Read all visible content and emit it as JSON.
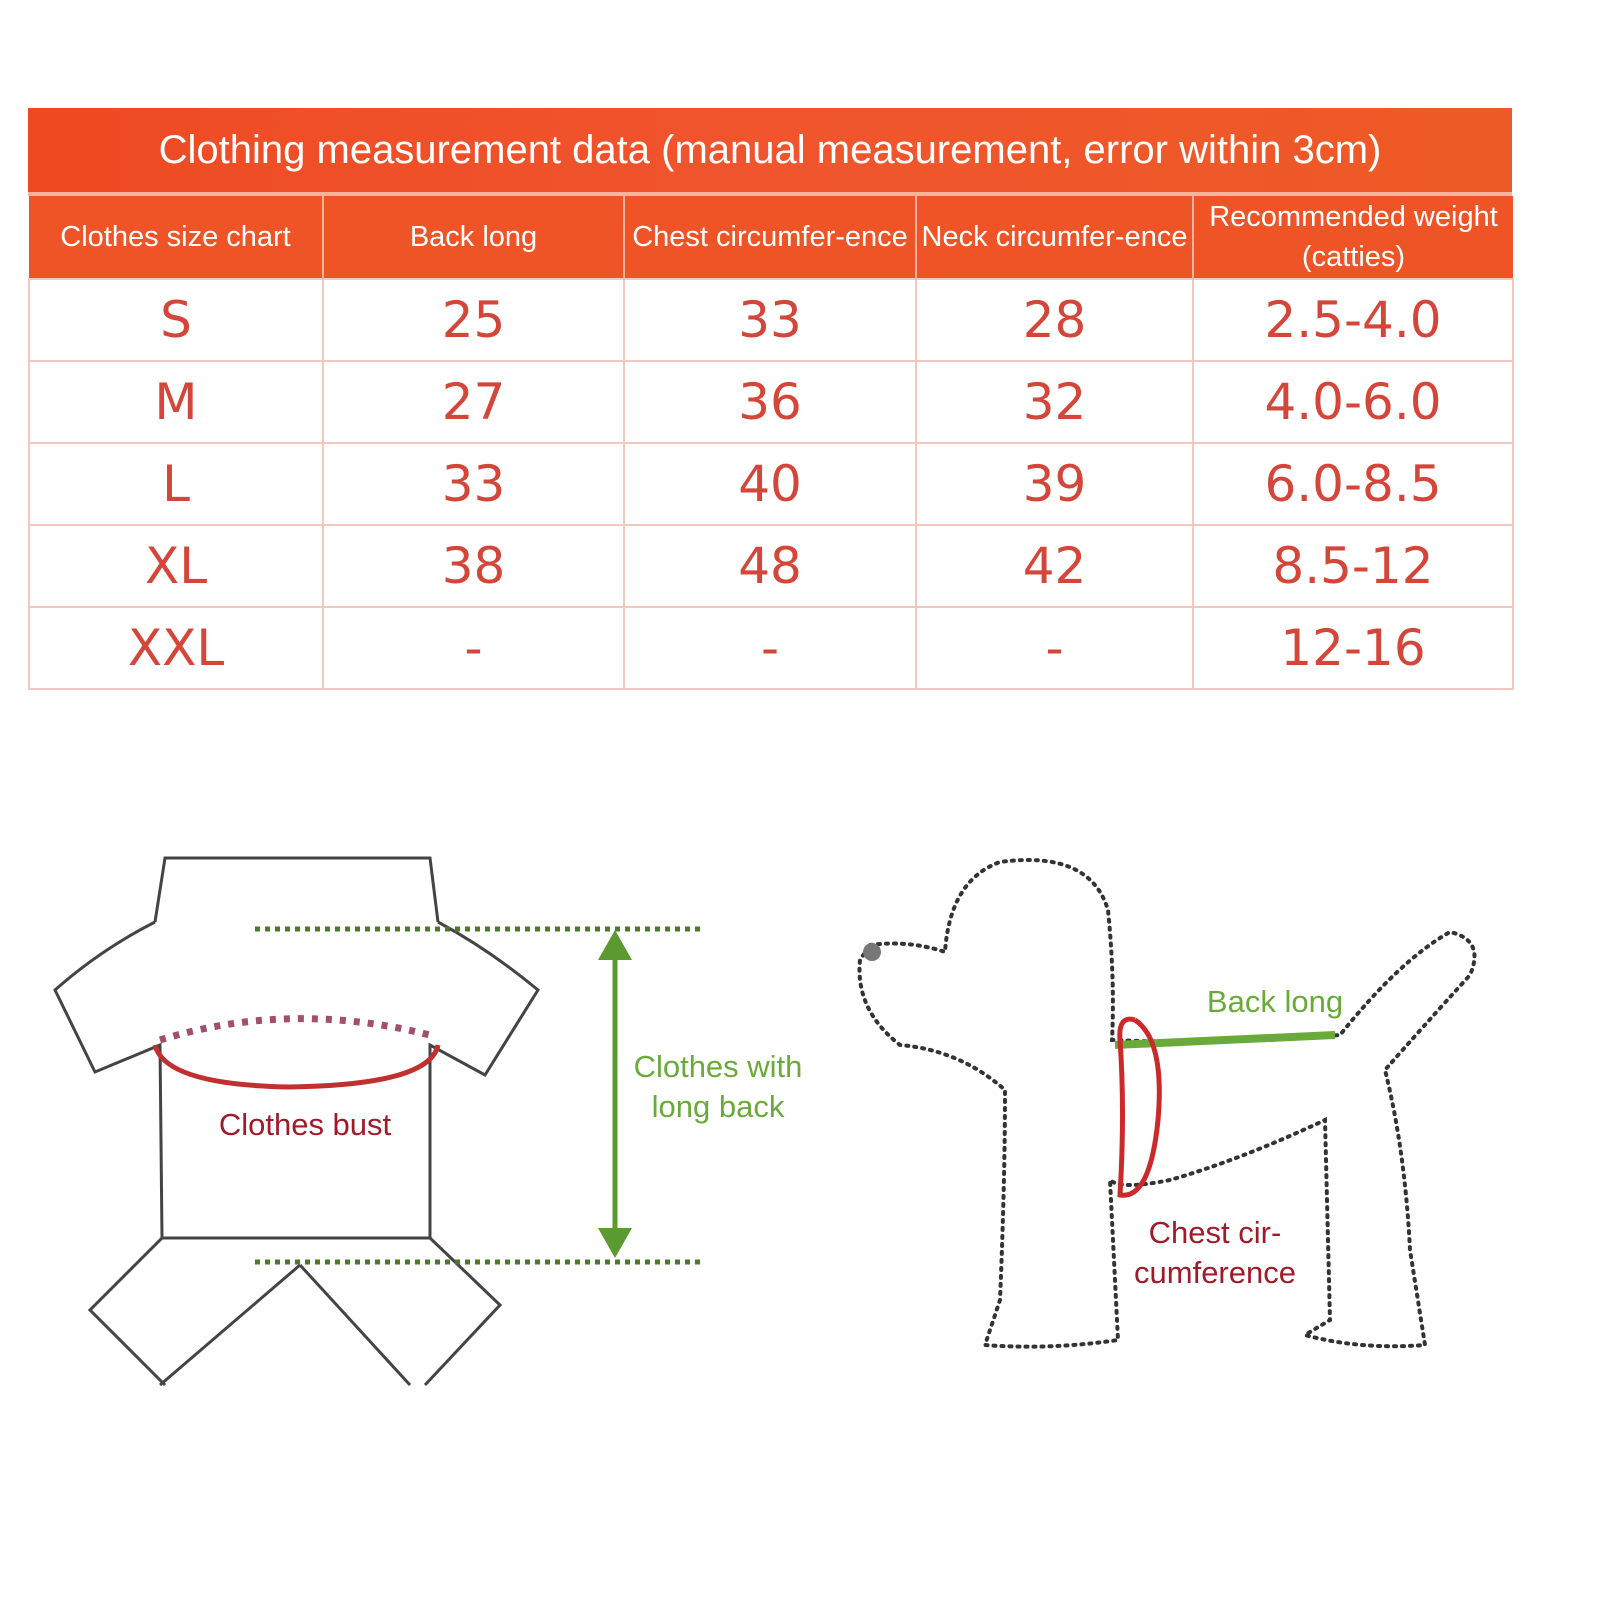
{
  "table": {
    "title": "Clothing measurement data (manual measurement, error within 3cm)",
    "headers": [
      "Clothes size chart",
      "Back long",
      "Chest circumfer-ence",
      "Neck circumfer-ence",
      "Recommended weight (catties)"
    ],
    "rows": [
      [
        "S",
        "25",
        "33",
        "28",
        "2.5-4.0"
      ],
      [
        "M",
        "27",
        "36",
        "32",
        "4.0-6.0"
      ],
      [
        "L",
        "33",
        "40",
        "39",
        "6.0-8.5"
      ],
      [
        "XL",
        "38",
        "48",
        "42",
        "8.5-12"
      ],
      [
        "XXL",
        "-",
        "-",
        "-",
        "12-16"
      ]
    ]
  },
  "diagram": {
    "clothes_bust": "Clothes bust",
    "clothes_back_line1": "Clothes with",
    "clothes_back_line2": "long back",
    "dog_back": "Back long",
    "dog_chest_line1": "Chest cir-",
    "dog_chest_line2": "cumference"
  },
  "colors": {
    "header": "#ef5426",
    "value_text": "#d4453a",
    "green": "#6aaa3a",
    "red": "#a01a2a"
  }
}
